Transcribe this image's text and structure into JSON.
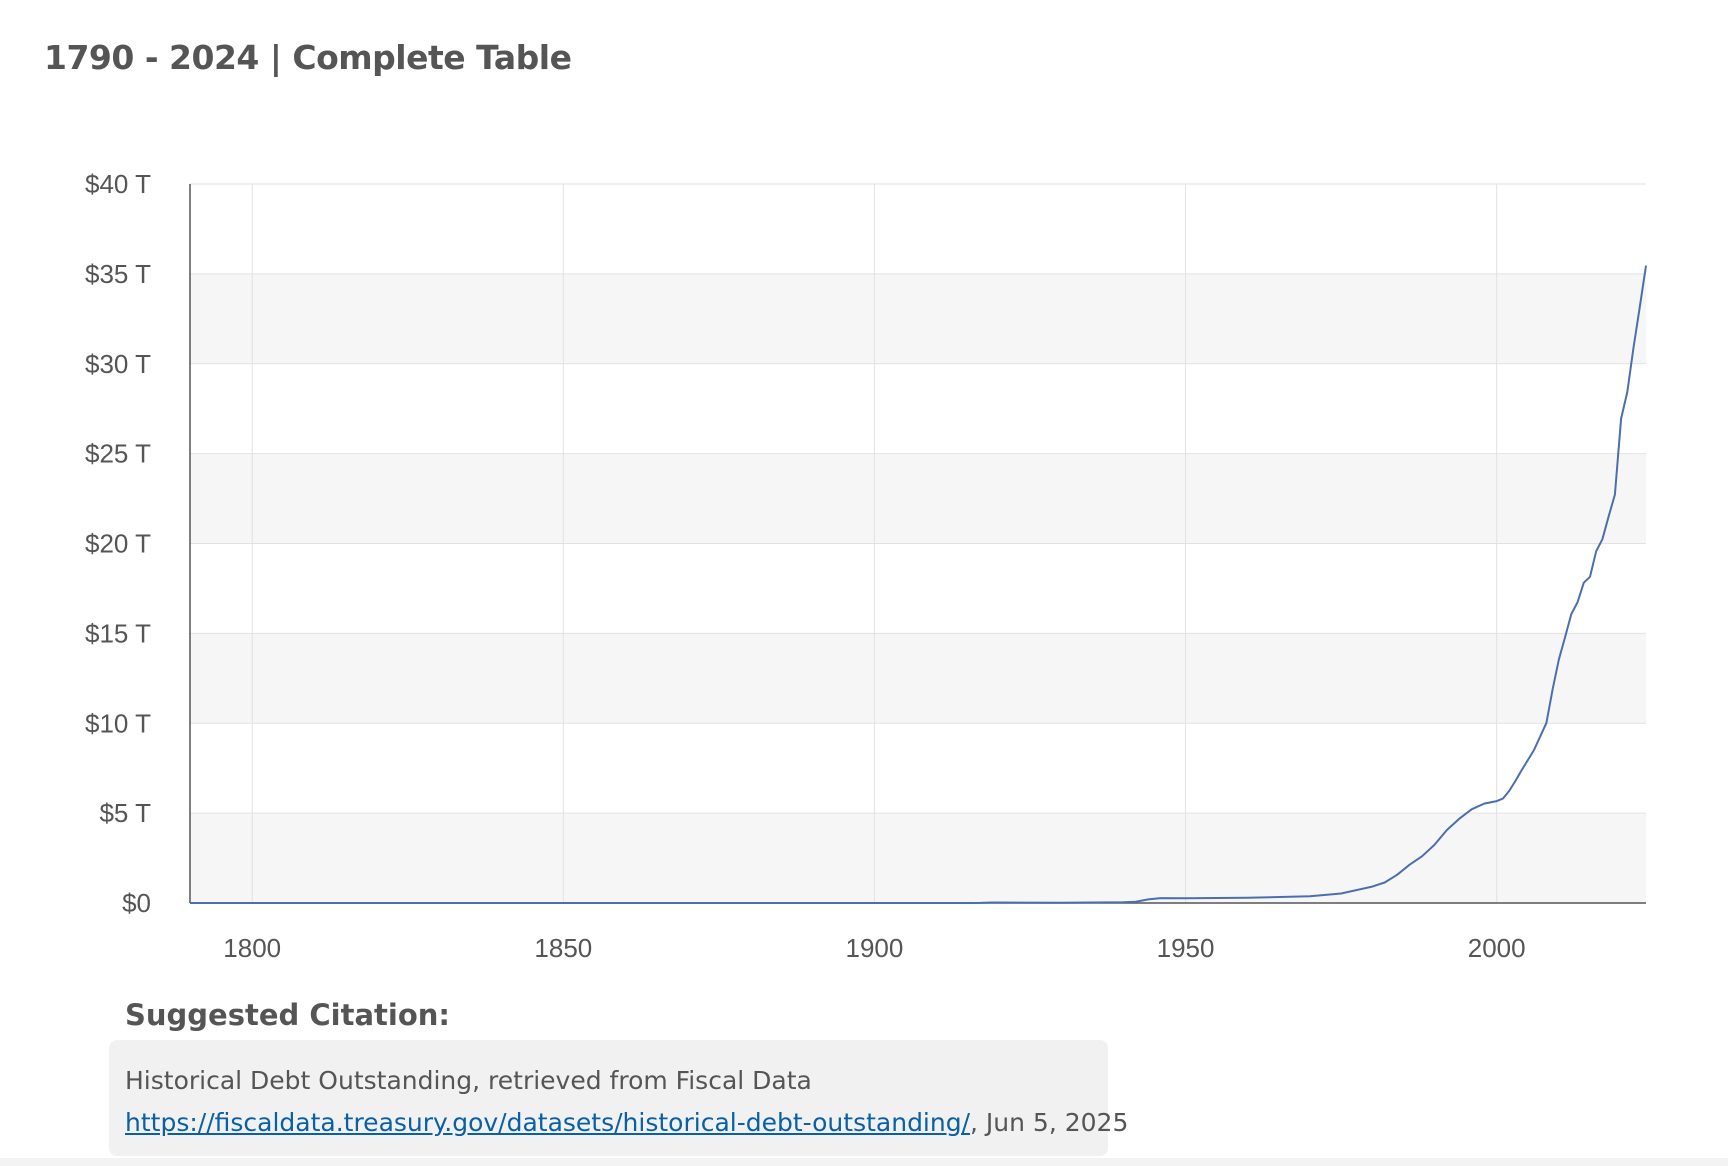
{
  "header": {
    "title": "1790 - 2024 | Complete Table"
  },
  "chart_data": {
    "type": "line",
    "title": "",
    "xlabel": "",
    "ylabel": "",
    "xlim": [
      1790,
      2024
    ],
    "ylim": [
      0,
      40
    ],
    "x_ticks": [
      1800,
      1850,
      1900,
      1950,
      2000
    ],
    "x_tick_labels": [
      "1800",
      "1850",
      "1900",
      "1950",
      "2000"
    ],
    "y_ticks": [
      0,
      5,
      10,
      15,
      20,
      25,
      30,
      35,
      40
    ],
    "y_tick_labels": [
      "$0",
      "$5 T",
      "$10 T",
      "$15 T",
      "$20 T",
      "$25 T",
      "$30 T",
      "$35 T",
      "$40 T"
    ],
    "grid": true,
    "line_color": "#4a6fae",
    "series": [
      {
        "x": [
          1790,
          1800,
          1850,
          1900,
          1915,
          1917,
          1919,
          1930,
          1940,
          1942,
          1944,
          1946,
          1950,
          1960,
          1970,
          1975,
          1980,
          1982,
          1984,
          1986,
          1988,
          1990,
          1992,
          1994,
          1996,
          1998,
          2000,
          2001,
          2002,
          2003,
          2004,
          2006,
          2008,
          2009,
          2010,
          2011,
          2012,
          2013,
          2014,
          2015,
          2016,
          2017,
          2018,
          2019,
          2020,
          2021,
          2022,
          2023,
          2024
        ],
        "values": [
          0,
          0,
          0,
          0,
          0,
          0.005,
          0.03,
          0.016,
          0.04,
          0.07,
          0.2,
          0.27,
          0.26,
          0.29,
          0.37,
          0.53,
          0.91,
          1.14,
          1.57,
          2.13,
          2.6,
          3.23,
          4.06,
          4.69,
          5.22,
          5.53,
          5.67,
          5.81,
          6.23,
          6.78,
          7.38,
          8.51,
          10.02,
          11.91,
          13.56,
          14.79,
          16.07,
          16.74,
          17.82,
          18.15,
          19.57,
          20.24,
          21.52,
          22.72,
          26.95,
          28.43,
          30.93,
          33.17,
          35.46
        ]
      }
    ]
  },
  "citation": {
    "heading": "Suggested Citation:",
    "line1": "Historical Debt Outstanding, retrieved from Fiscal Data",
    "url": "https://fiscaldata.treasury.gov/datasets/historical-debt-outstanding/",
    "date_suffix": ", Jun 5, 2025"
  }
}
